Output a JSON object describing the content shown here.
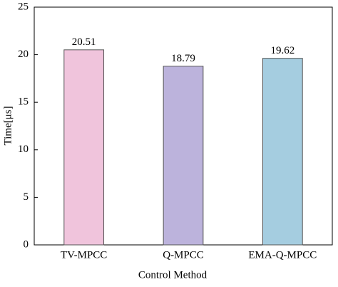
{
  "chart_data": {
    "type": "bar",
    "xlabel": "Control Method",
    "ylabel": "Time[μs]",
    "categories": [
      "TV-MPCC",
      "Q-MPCC",
      "EMA-Q-MPCC"
    ],
    "values": [
      20.51,
      18.79,
      19.62
    ],
    "colors": [
      "#f0c4dc",
      "#bcb3dc",
      "#a5cde0"
    ],
    "ylim": [
      0,
      25
    ],
    "yticks": [
      0,
      5,
      10,
      15,
      20,
      25
    ],
    "grid": false
  }
}
